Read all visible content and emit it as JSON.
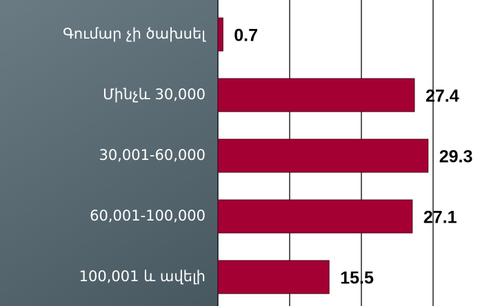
{
  "chart_data": {
    "type": "bar",
    "orientation": "horizontal",
    "categories": [
      "Գումար չի ծախսել",
      "Մինչև 30,000",
      "30,001-60,000",
      "60,001-100,000",
      "100,001 և ավելի"
    ],
    "values": [
      0.7,
      27.4,
      29.3,
      27.1,
      15.5
    ],
    "color": "#a50034",
    "xlim": [
      0,
      40
    ],
    "xticks": [
      0,
      10,
      20,
      30,
      40
    ],
    "grid": true
  }
}
